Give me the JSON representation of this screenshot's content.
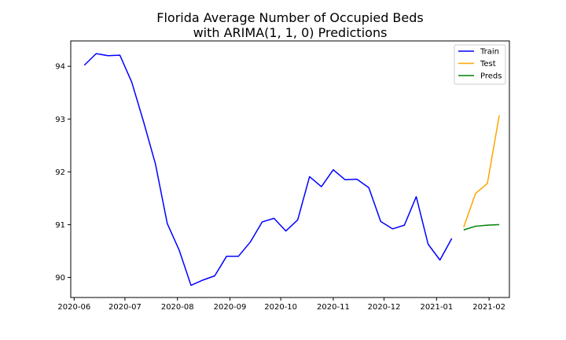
{
  "chart_data": {
    "type": "line",
    "title": [
      "Florida Average Number of Occupied Beds",
      "with ARIMA(1, 1, 0) Predictions"
    ],
    "xlabel": "",
    "ylabel": "",
    "xlim": [
      "2020-05-30",
      "2021-02-13"
    ],
    "ylim": [
      89.62,
      94.48
    ],
    "grid": false,
    "legend_position": "top-right",
    "x_ticks": [
      {
        "date": "2020-06-01",
        "label": "2020-06"
      },
      {
        "date": "2020-07-01",
        "label": "2020-07"
      },
      {
        "date": "2020-08-01",
        "label": "2020-08"
      },
      {
        "date": "2020-09-01",
        "label": "2020-09"
      },
      {
        "date": "2020-10-01",
        "label": "2020-10"
      },
      {
        "date": "2020-11-01",
        "label": "2020-11"
      },
      {
        "date": "2020-12-01",
        "label": "2020-12"
      },
      {
        "date": "2021-01-01",
        "label": "2021-01"
      },
      {
        "date": "2021-02-01",
        "label": "2021-02"
      }
    ],
    "y_ticks": [
      90,
      91,
      92,
      93,
      94
    ],
    "series": [
      {
        "name": "Train",
        "color": "#0000ff",
        "points": [
          [
            "2020-06-07",
            94.02
          ],
          [
            "2020-06-14",
            94.24
          ],
          [
            "2020-06-21",
            94.2
          ],
          [
            "2020-06-28",
            94.21
          ],
          [
            "2020-07-05",
            93.7
          ],
          [
            "2020-07-12",
            92.95
          ],
          [
            "2020-07-19",
            92.15
          ],
          [
            "2020-07-26",
            91.02
          ],
          [
            "2020-08-02",
            90.52
          ],
          [
            "2020-08-09",
            89.85
          ],
          [
            "2020-08-16",
            89.95
          ],
          [
            "2020-08-23",
            90.03
          ],
          [
            "2020-08-30",
            90.4
          ],
          [
            "2020-09-06",
            90.4
          ],
          [
            "2020-09-13",
            90.67
          ],
          [
            "2020-09-20",
            91.05
          ],
          [
            "2020-09-27",
            91.12
          ],
          [
            "2020-10-04",
            90.88
          ],
          [
            "2020-10-11",
            91.09
          ],
          [
            "2020-10-18",
            91.91
          ],
          [
            "2020-10-25",
            91.72
          ],
          [
            "2020-11-01",
            92.04
          ],
          [
            "2020-11-08",
            91.85
          ],
          [
            "2020-11-15",
            91.86
          ],
          [
            "2020-11-22",
            91.7
          ],
          [
            "2020-11-29",
            91.06
          ],
          [
            "2020-12-06",
            90.92
          ],
          [
            "2020-12-13",
            90.99
          ],
          [
            "2020-12-20",
            91.53
          ],
          [
            "2020-12-27",
            90.63
          ],
          [
            "2021-01-03",
            90.33
          ],
          [
            "2021-01-10",
            90.74
          ]
        ]
      },
      {
        "name": "Test",
        "color": "#ffa500",
        "points": [
          [
            "2021-01-17",
            90.95
          ],
          [
            "2021-01-24",
            91.59
          ],
          [
            "2021-01-31",
            91.78
          ],
          [
            "2021-02-07",
            93.07
          ]
        ]
      },
      {
        "name": "Preds",
        "color": "#008000",
        "points": [
          [
            "2021-01-17",
            90.9
          ],
          [
            "2021-01-24",
            90.97
          ],
          [
            "2021-01-31",
            90.99
          ],
          [
            "2021-02-07",
            91.0
          ]
        ]
      }
    ]
  }
}
